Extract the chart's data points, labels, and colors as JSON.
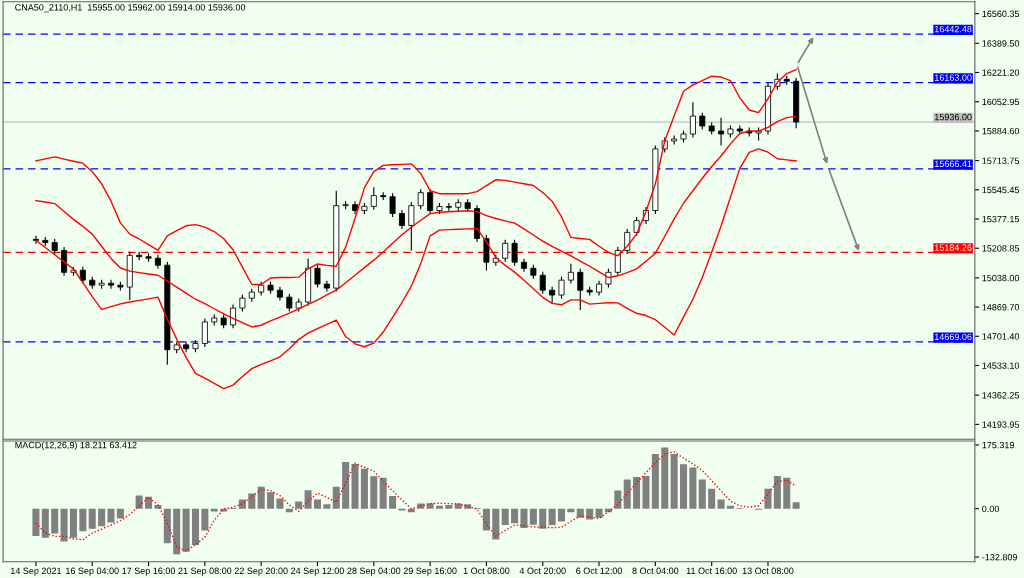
{
  "chart_data": [
    {
      "type": "candlestick",
      "title": "CNA50_2110,H1  15955.00 15962.00 15914.00 15936.00",
      "categories": [
        null,
        null,
        null,
        null,
        null,
        null,
        null,
        null,
        null,
        null,
        null,
        null,
        null,
        null,
        null,
        null,
        null,
        null,
        null,
        null,
        null,
        null,
        null,
        null,
        null,
        null,
        null,
        null,
        null,
        null,
        null,
        null,
        null,
        null,
        null,
        null,
        null,
        null,
        null,
        null,
        null,
        null,
        null,
        null,
        null,
        null,
        null,
        null,
        null,
        null,
        null,
        null,
        null,
        null,
        null,
        null,
        null,
        null,
        null,
        null,
        null,
        null,
        null,
        null,
        null,
        null,
        null,
        null,
        null,
        null,
        null,
        null,
        null,
        null,
        null,
        null,
        null,
        null,
        null,
        null,
        null,
        null
      ],
      "ohlc": [
        [
          15260,
          15280,
          15234,
          15254
        ],
        [
          15254,
          15274,
          15222,
          15242
        ],
        [
          15242,
          15262,
          15176,
          15196
        ],
        [
          15196,
          15216,
          15050,
          15070
        ],
        [
          15070,
          15102,
          15050,
          15082
        ],
        [
          15082,
          15102,
          15005,
          15025
        ],
        [
          15025,
          15045,
          14976,
          14996
        ],
        [
          14996,
          15027,
          14976,
          15007
        ],
        [
          15007,
          15027,
          14976,
          14996
        ],
        [
          14996,
          15016,
          14965,
          14985
        ],
        [
          14985,
          15188,
          14910,
          15168
        ],
        [
          15168,
          15188,
          15140,
          15160
        ],
        [
          15160,
          15180,
          15131,
          15151
        ],
        [
          15151,
          15171,
          15091,
          15111
        ],
        [
          15111,
          15131,
          14537,
          14624
        ],
        [
          14624,
          14672,
          14604,
          14652
        ],
        [
          14652,
          14672,
          14610,
          14630
        ],
        [
          14630,
          14680,
          14610,
          14660
        ],
        [
          14660,
          14804,
          14640,
          14784
        ],
        [
          14784,
          14827,
          14764,
          14807
        ],
        [
          14807,
          14827,
          14747,
          14767
        ],
        [
          14767,
          14884,
          14747,
          14864
        ],
        [
          14864,
          14941,
          14844,
          14921
        ],
        [
          14921,
          14976,
          14901,
          14956
        ],
        [
          14956,
          15016,
          14936,
          14996
        ],
        [
          14996,
          15016,
          14947,
          14967
        ],
        [
          14967,
          14987,
          14907,
          14927
        ],
        [
          14927,
          14947,
          14844,
          14864
        ],
        [
          14864,
          14919,
          14844,
          14899
        ],
        [
          14899,
          15150,
          14879,
          15093
        ],
        [
          15093,
          15113,
          14982,
          15002
        ],
        [
          15002,
          15022,
          14959,
          14979
        ],
        [
          14979,
          15540,
          14959,
          15454
        ],
        [
          15454,
          15480,
          15434,
          15460
        ],
        [
          15460,
          15480,
          15406,
          15426
        ],
        [
          15426,
          15470,
          15406,
          15450
        ],
        [
          15450,
          15560,
          15430,
          15512
        ],
        [
          15512,
          15532,
          15486,
          15506
        ],
        [
          15506,
          15526,
          15389,
          15409
        ],
        [
          15409,
          15429,
          15320,
          15340
        ],
        [
          15340,
          15474,
          15196,
          15454
        ],
        [
          15454,
          15549,
          15434,
          15529
        ],
        [
          15529,
          15549,
          15406,
          15426
        ],
        [
          15426,
          15469,
          15406,
          15449
        ],
        [
          15449,
          15469,
          15425,
          15445
        ],
        [
          15445,
          15491,
          15425,
          15471
        ],
        [
          15471,
          15491,
          15417,
          15437
        ],
        [
          15437,
          15457,
          15245,
          15265
        ],
        [
          15265,
          15285,
          15080,
          15128
        ],
        [
          15128,
          15171,
          15108,
          15151
        ],
        [
          15151,
          15257,
          15131,
          15237
        ],
        [
          15237,
          15257,
          15108,
          15128
        ],
        [
          15128,
          15148,
          15073,
          15093
        ],
        [
          15093,
          15113,
          15033,
          15053
        ],
        [
          15053,
          15073,
          14947,
          14967
        ],
        [
          14967,
          14987,
          14890,
          14939
        ],
        [
          14939,
          15045,
          14919,
          15025
        ],
        [
          15025,
          15120,
          15005,
          15070
        ],
        [
          15070,
          15090,
          14853,
          14967
        ],
        [
          14967,
          14987,
          14936,
          14956
        ],
        [
          14956,
          15022,
          14936,
          15002
        ],
        [
          15002,
          15090,
          14982,
          15070
        ],
        [
          15070,
          15216,
          15050,
          15196
        ],
        [
          15196,
          15320,
          15176,
          15300
        ],
        [
          15300,
          15388,
          15280,
          15368
        ],
        [
          15368,
          15446,
          15348,
          15426
        ],
        [
          15426,
          15801,
          15406,
          15781
        ],
        [
          15781,
          15847,
          15761,
          15827
        ],
        [
          15827,
          15858,
          15807,
          15838
        ],
        [
          15838,
          15887,
          15818,
          15867
        ],
        [
          15867,
          16050,
          15847,
          15970
        ],
        [
          15970,
          15990,
          15893,
          15913
        ],
        [
          15913,
          15933,
          15864,
          15884
        ],
        [
          15884,
          15960,
          15800,
          15867
        ],
        [
          15867,
          15916,
          15847,
          15896
        ],
        [
          15896,
          15916,
          15864,
          15884
        ],
        [
          15884,
          15904,
          15853,
          15873
        ],
        [
          15873,
          15904,
          15830,
          15884
        ],
        [
          15884,
          16162,
          15864,
          16142
        ],
        [
          16142,
          16216,
          16122,
          16182
        ],
        [
          16182,
          16202,
          16151,
          16171
        ],
        [
          16171,
          16191,
          15900,
          15936
        ]
      ],
      "color": "#000000",
      "series": [
        {
          "type": "line",
          "color": "#ff0000",
          "values": [
            15712,
            15724,
            15735,
            15722,
            15710,
            15699,
            15650,
            15580,
            15480,
            15355,
            15290,
            15262,
            15230,
            15196,
            15280,
            15310,
            15338,
            15345,
            15330,
            15305,
            15265,
            15200,
            15100,
            15000,
            15000,
            15037,
            15040,
            15040,
            15042,
            15090,
            15118,
            15110,
            15105,
            15215,
            15380,
            15558,
            15650,
            15686,
            15690,
            15692,
            15695,
            15640,
            15540,
            15523,
            15523,
            15523,
            15523,
            15535,
            15570,
            15603,
            15600,
            15590,
            15580,
            15570,
            15530,
            15480,
            15390,
            15271,
            15265,
            15260,
            15220,
            15185,
            15165,
            15220,
            15290,
            15420,
            15580,
            15827,
            15970,
            16113,
            16150,
            16175,
            16200,
            16195,
            16175,
            16075,
            16005,
            15990,
            16070,
            16165,
            16215,
            16238
          ]
        },
        {
          "type": "line",
          "color": "#ff0000",
          "values": [
            15483,
            15475,
            15466,
            15420,
            15375,
            15335,
            15290,
            15220,
            15150,
            15095,
            15077,
            15068,
            15060,
            15053,
            15020,
            14985,
            14950,
            14915,
            14890,
            14860,
            14830,
            14805,
            14780,
            14755,
            14765,
            14790,
            14812,
            14835,
            14860,
            14885,
            14910,
            14940,
            14967,
            15010,
            15053,
            15097,
            15140,
            15187,
            15237,
            15286,
            15330,
            15370,
            15408,
            15416,
            15419,
            15422,
            15425,
            15420,
            15397,
            15380,
            15366,
            15353,
            15320,
            15285,
            15250,
            15220,
            15192,
            15165,
            15135,
            15105,
            15072,
            15040,
            15050,
            15068,
            15090,
            15134,
            15179,
            15278,
            15378,
            15468,
            15540,
            15612,
            15680,
            15740,
            15810,
            15870,
            15884,
            15884,
            15905,
            15938,
            15961,
            15969
          ]
        },
        {
          "type": "line",
          "color": "#ff0000",
          "values": [
            15254,
            15213,
            15171,
            15130,
            15089,
            15010,
            14930,
            14856,
            14872,
            14888,
            14899,
            14908,
            14917,
            14927,
            14800,
            14685,
            14580,
            14488,
            14460,
            14430,
            14400,
            14420,
            14470,
            14515,
            14540,
            14560,
            14583,
            14630,
            14684,
            14720,
            14745,
            14770,
            14795,
            14700,
            14658,
            14641,
            14662,
            14726,
            14810,
            14896,
            14990,
            15120,
            15280,
            15313,
            15316,
            15318,
            15320,
            15322,
            15245,
            15155,
            15110,
            15071,
            15024,
            14975,
            14926,
            14891,
            14883,
            14911,
            14911,
            14887,
            14891,
            14895,
            14894,
            14862,
            14834,
            14821,
            14797,
            14753,
            14709,
            14812,
            14915,
            15040,
            15185,
            15337,
            15503,
            15669,
            15761,
            15781,
            15762,
            15724,
            15718,
            15712
          ]
        }
      ],
      "ref_lines": [
        {
          "axis": "y",
          "value": 16442.48,
          "label": "16442.48",
          "color": "#0000ff",
          "line_style": "dashed"
        },
        {
          "axis": "y",
          "value": 16163.0,
          "label": "16163.00",
          "color": "#0000ff",
          "line_style": "dashed"
        },
        {
          "axis": "y",
          "value": 15936.0,
          "label": "15936.00",
          "color": "#c0c0c0",
          "line_style": "solid"
        },
        {
          "axis": "y",
          "value": 15666.41,
          "label": "15666.41",
          "color": "#0000ff",
          "line_style": "dashed"
        },
        {
          "axis": "y",
          "value": 15184.26,
          "label": "15184.26",
          "color": "#ff0000",
          "line_style": "dashed"
        },
        {
          "axis": "y",
          "value": 14669.06,
          "label": "14669.06",
          "color": "#0000ff",
          "line_style": "dashed"
        }
      ],
      "ylim": [
        14108,
        16629
      ],
      "yticks": [
        16560.35,
        {
          "value": 16389.5,
          "label": "16389.50"
        },
        {
          "value": 16221.2,
          "label": "16221.20"
        },
        16052.95,
        {
          "value": 15884.6,
          "label": "15884.60"
        },
        15713.75,
        15545.45,
        15377.15,
        15208.85,
        {
          "value": 15038.0,
          "label": "15038.00"
        },
        {
          "value": 14869.7,
          "label": "14869.70"
        },
        {
          "value": 14701.4,
          "label": "14701.40"
        },
        {
          "value": 14533.1,
          "label": "14533.10"
        },
        14362.25,
        14193.95
      ],
      "tick_labels": "y",
      "grid": false
    },
    {
      "type": "bar",
      "title": "MACD(12,26,9) 18.211 63.412",
      "categories": [
        "14 Sep 2021",
        null,
        null,
        null,
        null,
        null,
        "16 Sep 04:00",
        null,
        null,
        null,
        null,
        null,
        "17 Sep 16:00",
        null,
        null,
        null,
        null,
        null,
        "21 Sep 08:00",
        null,
        null,
        null,
        null,
        null,
        "22 Sep 20:00",
        null,
        null,
        null,
        null,
        null,
        "24 Sep 12:00",
        null,
        null,
        null,
        null,
        null,
        "28 Sep 04:00",
        null,
        null,
        null,
        null,
        null,
        "29 Sep 16:00",
        null,
        null,
        null,
        null,
        null,
        "1 Oct 08:00",
        null,
        null,
        null,
        null,
        null,
        "4 Oct 20:00",
        null,
        null,
        null,
        null,
        null,
        "6 Oct 12:00",
        null,
        null,
        null,
        null,
        null,
        "8 Oct 04:00",
        null,
        null,
        null,
        null,
        null,
        "11 Oct 16:00",
        null,
        null,
        null,
        null,
        null,
        "13 Oct 08:00",
        null,
        null,
        null
      ],
      "series": [
        {
          "type": "bar",
          "color": "#808080",
          "values": [
            -75,
            -80,
            -68,
            -90,
            -80,
            -62,
            -55,
            -48,
            -38,
            -27,
            0,
            36,
            33,
            10,
            -95,
            -125,
            -118,
            -100,
            -60,
            -8,
            -8,
            2,
            25,
            42,
            60,
            45,
            28,
            -10,
            20,
            51,
            25,
            12,
            60,
            128,
            123,
            110,
            89,
            85,
            35,
            -5,
            -10,
            14,
            15,
            8,
            10,
            14,
            12,
            2,
            -60,
            -85,
            -45,
            -40,
            -53,
            -44,
            -55,
            -45,
            -35,
            -10,
            -25,
            -30,
            -25,
            -10,
            50,
            80,
            87,
            90,
            150,
            168,
            150,
            122,
            113,
            80,
            55,
            25,
            8,
            2,
            0,
            -3,
            55,
            90,
            85,
            18
          ]
        },
        {
          "type": "line",
          "color": "#ff0000",
          "line_style": "dotted",
          "values": [
            -40,
            -67,
            -76,
            -76,
            -83,
            -85,
            -67,
            -56,
            -45,
            -33,
            -16,
            8,
            31,
            11,
            -40,
            -105,
            -116,
            -99,
            -78,
            -32,
            -1,
            4,
            13,
            33,
            53,
            50,
            36,
            10,
            -7,
            21,
            43,
            31,
            18,
            71,
            125,
            114,
            103,
            76,
            49,
            24,
            0,
            7,
            14,
            15,
            14,
            13,
            7,
            -1,
            -42,
            -75,
            -60,
            -45,
            -46,
            -50,
            -51,
            -52,
            -51,
            -35,
            -20,
            -23,
            -27,
            -8,
            12,
            42,
            71,
            99,
            126,
            151,
            156,
            139,
            123,
            105,
            77,
            49,
            21,
            8,
            4,
            8,
            41,
            75,
            78,
            62
          ]
        }
      ],
      "ylim": [
        -146,
        186
      ],
      "yticks": [
        175.319,
        {
          "value": 0,
          "label": "0.00"
        },
        -132.809
      ],
      "grid": false
    }
  ]
}
